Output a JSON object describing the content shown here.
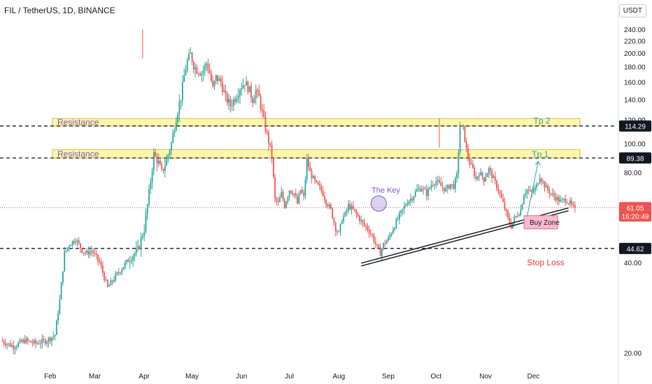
{
  "header": {
    "title": "FIL / TetherUS, 1D, BINANCE",
    "currency": "USDT"
  },
  "colors": {
    "up": "#26a69a",
    "down": "#ef5350",
    "zone_fill": "#fff59d",
    "zone_border": "#c9b037",
    "zone_label": "#7e57c2",
    "tp_label": "#26a69a",
    "stop_label": "#e53935",
    "buy_zone_fill": "#f8bbd0",
    "last_price_bg": "#ef5350",
    "level_bg": "#131722"
  },
  "chart_data": {
    "type": "candlestick",
    "y_scale": "log",
    "ylim": [
      18.5,
      252
    ],
    "y_ticks": [
      "240.00",
      "220.00",
      "200.00",
      "180.00",
      "160.00",
      "140.00",
      "120.00",
      "100.00",
      "80.00",
      "60.00",
      "40.00",
      "20.00"
    ],
    "x_ticks": [
      "Feb",
      "Mar",
      "Apr",
      "May",
      "Jun",
      "Jul",
      "Aug",
      "Sep",
      "Oct",
      "Nov",
      "Dec"
    ],
    "grid": false,
    "series_close": [
      [
        0,
        22
      ],
      [
        8,
        21
      ],
      [
        15,
        22
      ],
      [
        22,
        21.5
      ],
      [
        29,
        22
      ],
      [
        34,
        23
      ],
      [
        37,
        30
      ],
      [
        40,
        43
      ],
      [
        43,
        46
      ],
      [
        47,
        48
      ],
      [
        51,
        44
      ],
      [
        54,
        43
      ],
      [
        57,
        44
      ],
      [
        62,
        40
      ],
      [
        67,
        33
      ],
      [
        72,
        36
      ],
      [
        77,
        39
      ],
      [
        82,
        42
      ],
      [
        86,
        44
      ],
      [
        90,
        52
      ],
      [
        93,
        68
      ],
      [
        96,
        92
      ],
      [
        99,
        86
      ],
      [
        101,
        80
      ],
      [
        104,
        88
      ],
      [
        107,
        100
      ],
      [
        110,
        122
      ],
      [
        113,
        143
      ],
      [
        115,
        168
      ],
      [
        117,
        188
      ],
      [
        119,
        198
      ],
      [
        121,
        182
      ],
      [
        123,
        176
      ],
      [
        126,
        172
      ],
      [
        129,
        185
      ],
      [
        131,
        172
      ],
      [
        133,
        152
      ],
      [
        135,
        166
      ],
      [
        138,
        160
      ],
      [
        141,
        142
      ],
      [
        144,
        134
      ],
      [
        147,
        142
      ],
      [
        150,
        153
      ],
      [
        153,
        160
      ],
      [
        156,
        150
      ],
      [
        158,
        140
      ],
      [
        160,
        150
      ],
      [
        162,
        142
      ],
      [
        164,
        126
      ],
      [
        166,
        112
      ],
      [
        168,
        102
      ],
      [
        170,
        90
      ],
      [
        172,
        65
      ],
      [
        174,
        63
      ],
      [
        176,
        68
      ],
      [
        178,
        62
      ],
      [
        181,
        70
      ],
      [
        184,
        68
      ],
      [
        186,
        63
      ],
      [
        188,
        70
      ],
      [
        190,
        66
      ],
      [
        192,
        88
      ],
      [
        194,
        80
      ],
      [
        196,
        76
      ],
      [
        198,
        73
      ],
      [
        201,
        70
      ],
      [
        204,
        64
      ],
      [
        207,
        60
      ],
      [
        210,
        52
      ],
      [
        212,
        50
      ],
      [
        214,
        56
      ],
      [
        216,
        58
      ],
      [
        218,
        62
      ],
      [
        221,
        60
      ],
      [
        224,
        57
      ],
      [
        227,
        54
      ],
      [
        230,
        52
      ],
      [
        233,
        49
      ],
      [
        236,
        45
      ],
      [
        238,
        43
      ],
      [
        240,
        46
      ],
      [
        243,
        48
      ],
      [
        246,
        52
      ],
      [
        249,
        56
      ],
      [
        252,
        60
      ],
      [
        255,
        64
      ],
      [
        258,
        66
      ],
      [
        261,
        70
      ],
      [
        264,
        71
      ],
      [
        267,
        68
      ],
      [
        270,
        73
      ],
      [
        273,
        75
      ],
      [
        276,
        72
      ],
      [
        279,
        70
      ],
      [
        282,
        73
      ],
      [
        284,
        72
      ],
      [
        286,
        78
      ],
      [
        288,
        114
      ],
      [
        290,
        112
      ],
      [
        292,
        95
      ],
      [
        294,
        86
      ],
      [
        296,
        82
      ],
      [
        298,
        76
      ],
      [
        300,
        80
      ],
      [
        303,
        76
      ],
      [
        306,
        82
      ],
      [
        309,
        76
      ],
      [
        312,
        70
      ],
      [
        315,
        63
      ],
      [
        318,
        56
      ],
      [
        320,
        53
      ],
      [
        322,
        56
      ],
      [
        324,
        58
      ],
      [
        326,
        60
      ],
      [
        328,
        68
      ],
      [
        330,
        70
      ],
      [
        333,
        68
      ],
      [
        336,
        72
      ],
      [
        338,
        78
      ],
      [
        340,
        74
      ],
      [
        342,
        71
      ],
      [
        345,
        68
      ],
      [
        348,
        66
      ],
      [
        351,
        64
      ],
      [
        354,
        65
      ],
      [
        357,
        63
      ],
      [
        360,
        60
      ]
    ],
    "resistance_zones": [
      {
        "label": "Resistance",
        "range": [
          114.3,
          121.0
        ]
      },
      {
        "label": "Resistance",
        "range": [
          89.38,
          95.3
        ]
      }
    ],
    "horizontal_levels": [
      {
        "value": 114.29,
        "label": "114.29"
      },
      {
        "value": 89.38,
        "label": "89.38"
      },
      {
        "value": 44.62,
        "label": "44.62"
      }
    ],
    "last_price": {
      "value": 61.05,
      "label": "61.05",
      "countdown": "16:20:49"
    },
    "trendline": {
      "from": [
        226,
        39.0
      ],
      "to": [
        356,
        59.6
      ]
    },
    "annotations": [
      {
        "text": "The Key",
        "at": [
          236,
          70
        ],
        "color": "#7e57c2"
      },
      {
        "text": "Tp 2",
        "at": [
          334,
          119
        ],
        "color": "#26a69a"
      },
      {
        "text": "Tp 1",
        "at": [
          333,
          92
        ],
        "color": "#26a69a"
      },
      {
        "text": "Buy Zone",
        "at": [
          329,
          55
        ],
        "color": "#131722"
      },
      {
        "text": "Stop Loss",
        "at": [
          330,
          40
        ],
        "color": "#e53935"
      }
    ]
  }
}
